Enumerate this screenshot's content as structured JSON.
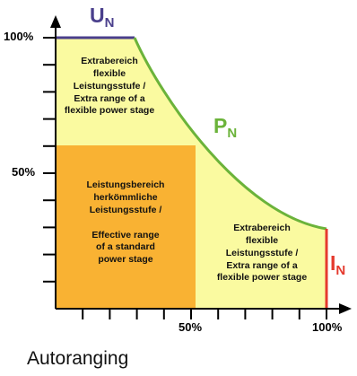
{
  "labels": {
    "voltage_symbol": "U",
    "voltage_sub": "N",
    "power_symbol": "P",
    "power_sub": "N",
    "current_symbol": "I",
    "current_sub": "N"
  },
  "y_axis": {
    "tick_100": "100%",
    "tick_50": "50%"
  },
  "x_axis": {
    "tick_50": "50%",
    "tick_100": "100%"
  },
  "regions": {
    "extra_top": [
      "Extrabereich",
      "flexible",
      "Leistungsstufe /",
      "Extra range of a",
      "flexible power stage"
    ],
    "standard": [
      "Leistungsbereich",
      "herkömmliche",
      "Leistungsstufe /",
      "",
      "Effective range",
      "of a standard",
      "power stage"
    ],
    "extra_right": [
      "Extrabereich",
      "flexible",
      "Leistungsstufe /",
      "Extra range of a",
      "flexible power stage"
    ]
  },
  "caption": "Autoranging",
  "colors": {
    "voltage": "#4a3f8c",
    "power": "#6bb33a",
    "current": "#e53a2e",
    "extra_region": "#fafaa0",
    "standard_region": "#f9b233",
    "axis": "#000000"
  }
}
